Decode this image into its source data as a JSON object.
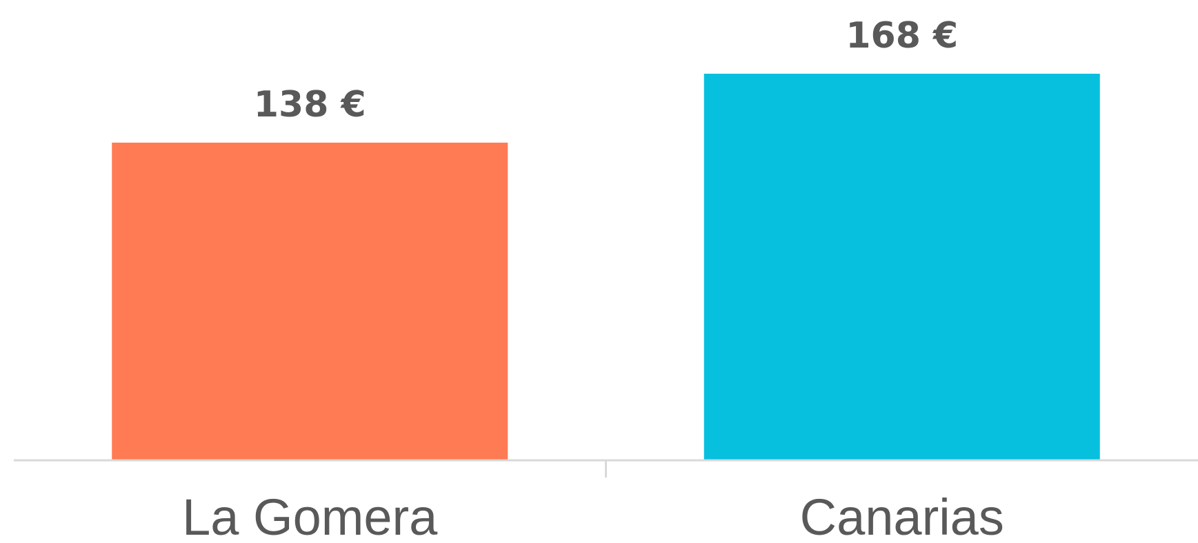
{
  "chart_data": {
    "type": "bar",
    "categories": [
      "La Gomera",
      "Canarias"
    ],
    "values": [
      138,
      168
    ],
    "data_labels": [
      "138 €",
      "168 €"
    ],
    "colors": [
      "#FF7B54",
      "#06C0DE"
    ],
    "axis_color": "#D9D9D9",
    "label_color": "#595959",
    "ylim": [
      0,
      168
    ],
    "grid": false,
    "legend": "none"
  }
}
